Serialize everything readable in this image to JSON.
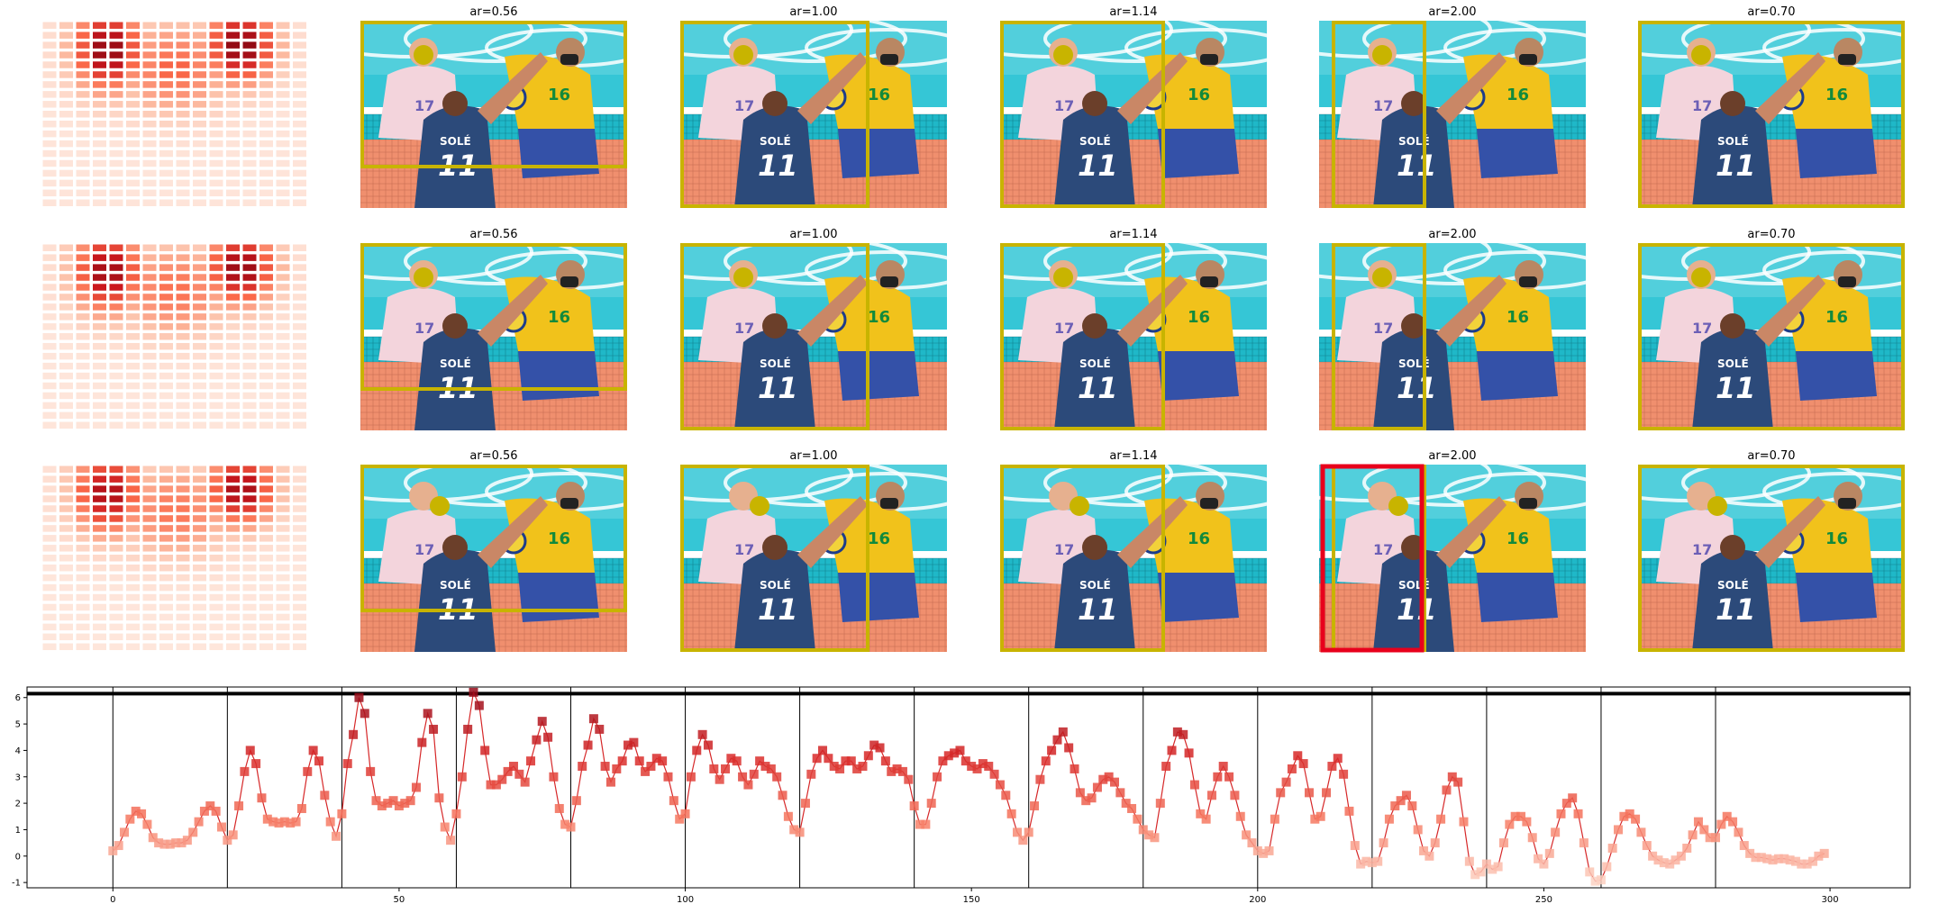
{
  "grid": {
    "rows": 3,
    "titles": [
      "ar=0.56",
      "ar=1.00",
      "ar=1.14",
      "ar=2.00",
      "ar=0.70"
    ],
    "aspect_ratios": [
      0.56,
      1.0,
      1.14,
      2.0,
      0.7
    ],
    "box_color": "#c8b400",
    "red_box_color": "#e8001c",
    "heatmap_colormap": "Reds"
  },
  "jersey_text": {
    "name": "SOLÉ",
    "number": "11",
    "number_right": "16"
  },
  "chart_data": {
    "type": "line",
    "xlabel": "",
    "ylabel": "",
    "xlim": [
      -15,
      314
    ],
    "ylim": [
      -1.2,
      6.4
    ],
    "xticks": [
      0,
      50,
      100,
      150,
      200,
      250,
      300
    ],
    "yticks": [
      -1,
      0,
      1,
      2,
      3,
      4,
      5,
      6
    ],
    "hline": 6.15,
    "vlines": [
      0,
      20,
      40,
      60,
      80,
      100,
      120,
      140,
      160,
      180,
      200,
      220,
      240,
      260,
      280
    ],
    "series": [
      {
        "x": [
          0,
          1,
          2,
          3,
          4,
          5,
          6,
          7,
          8,
          9,
          10,
          11,
          12,
          13,
          14,
          15,
          16,
          17,
          18,
          19,
          20,
          21,
          22,
          23,
          24,
          25,
          26,
          27,
          28,
          29,
          30,
          31,
          32,
          33,
          34,
          35,
          36,
          37,
          38,
          39,
          40,
          41,
          42,
          43,
          44,
          45,
          46,
          47,
          48,
          49,
          50,
          51,
          52,
          53,
          54,
          55,
          56,
          57,
          58,
          59,
          60,
          61,
          62,
          63,
          64,
          65,
          66,
          67,
          68,
          69,
          70,
          71,
          72,
          73,
          74,
          75,
          76,
          77,
          78,
          79,
          80,
          81,
          82,
          83,
          84,
          85,
          86,
          87,
          88,
          89,
          90,
          91,
          92,
          93,
          94,
          95,
          96,
          97,
          98,
          99,
          100,
          101,
          102,
          103,
          104,
          105,
          106,
          107,
          108,
          109,
          110,
          111,
          112,
          113,
          114,
          115,
          116,
          117,
          118,
          119,
          120,
          121,
          122,
          123,
          124,
          125,
          126,
          127,
          128,
          129,
          130,
          131,
          132,
          133,
          134,
          135,
          136,
          137,
          138,
          139,
          140,
          141,
          142,
          143,
          144,
          145,
          146,
          147,
          148,
          149,
          150,
          151,
          152,
          153,
          154,
          155,
          156,
          157,
          158,
          159,
          160,
          161,
          162,
          163,
          164,
          165,
          166,
          167,
          168,
          169,
          170,
          171,
          172,
          173,
          174,
          175,
          176,
          177,
          178,
          179,
          180,
          181,
          182,
          183,
          184,
          185,
          186,
          187,
          188,
          189,
          190,
          191,
          192,
          193,
          194,
          195,
          196,
          197,
          198,
          199,
          200,
          201,
          202,
          203,
          204,
          205,
          206,
          207,
          208,
          209,
          210,
          211,
          212,
          213,
          214,
          215,
          216,
          217,
          218,
          219,
          220,
          221,
          222,
          223,
          224,
          225,
          226,
          227,
          228,
          229,
          230,
          231,
          232,
          233,
          234,
          235,
          236,
          237,
          238,
          239,
          240,
          241,
          242,
          243,
          244,
          245,
          246,
          247,
          248,
          249,
          250,
          251,
          252,
          253,
          254,
          255,
          256,
          257,
          258,
          259,
          260,
          261,
          262,
          263,
          264,
          265,
          266,
          267,
          268,
          269,
          270,
          271,
          272,
          273,
          274,
          275,
          276,
          277,
          278,
          279,
          280,
          281,
          282,
          283,
          284,
          285,
          286,
          287,
          288,
          289,
          290,
          291,
          292,
          293,
          294,
          295,
          296,
          297,
          298,
          299
        ],
        "y": [
          0.2,
          0.4,
          0.9,
          1.4,
          1.7,
          1.6,
          1.2,
          0.7,
          0.5,
          0.45,
          0.45,
          0.5,
          0.5,
          0.6,
          0.9,
          1.3,
          1.7,
          1.9,
          1.7,
          1.1,
          0.6,
          0.8,
          1.9,
          3.2,
          4.0,
          3.5,
          2.2,
          1.4,
          1.3,
          1.25,
          1.3,
          1.25,
          1.3,
          1.8,
          3.2,
          4.0,
          3.6,
          2.3,
          1.3,
          0.75,
          1.6,
          3.5,
          4.6,
          6.0,
          5.4,
          3.2,
          2.1,
          1.9,
          2.0,
          2.1,
          1.9,
          2.0,
          2.1,
          2.6,
          4.3,
          5.4,
          4.8,
          2.2,
          1.1,
          0.6,
          1.6,
          3.0,
          4.8,
          6.2,
          5.7,
          4.0,
          2.7,
          2.7,
          2.9,
          3.2,
          3.4,
          3.1,
          2.8,
          3.6,
          4.4,
          5.1,
          4.5,
          3.0,
          1.8,
          1.2,
          1.1,
          2.1,
          3.4,
          4.2,
          5.2,
          4.8,
          3.4,
          2.8,
          3.3,
          3.6,
          4.2,
          4.3,
          3.6,
          3.2,
          3.4,
          3.7,
          3.6,
          3.0,
          2.1,
          1.4,
          1.6,
          3.0,
          4.0,
          4.6,
          4.2,
          3.3,
          2.9,
          3.3,
          3.7,
          3.6,
          3.0,
          2.7,
          3.1,
          3.6,
          3.4,
          3.3,
          3.0,
          2.3,
          1.5,
          1.0,
          0.9,
          2.0,
          3.1,
          3.7,
          4.0,
          3.7,
          3.4,
          3.3,
          3.6,
          3.6,
          3.3,
          3.4,
          3.8,
          4.2,
          4.1,
          3.6,
          3.2,
          3.3,
          3.2,
          2.9,
          1.9,
          1.2,
          1.2,
          2.0,
          3.0,
          3.6,
          3.8,
          3.9,
          4.0,
          3.6,
          3.4,
          3.3,
          3.5,
          3.4,
          3.1,
          2.7,
          2.3,
          1.6,
          0.9,
          0.6,
          0.9,
          1.9,
          2.9,
          3.6,
          4.0,
          4.4,
          4.7,
          4.1,
          3.3,
          2.4,
          2.1,
          2.2,
          2.6,
          2.9,
          3.0,
          2.8,
          2.4,
          2.0,
          1.8,
          1.4,
          1.0,
          0.8,
          0.7,
          2.0,
          3.4,
          4.0,
          4.7,
          4.6,
          3.9,
          2.7,
          1.6,
          1.4,
          2.3,
          3.0,
          3.4,
          3.0,
          2.3,
          1.5,
          0.8,
          0.5,
          0.2,
          0.1,
          0.2,
          1.4,
          2.4,
          2.8,
          3.3,
          3.8,
          3.5,
          2.4,
          1.4,
          1.5,
          2.4,
          3.4,
          3.7,
          3.1,
          1.7,
          0.4,
          -0.3,
          -0.2,
          -0.25,
          -0.2,
          0.5,
          1.4,
          1.9,
          2.1,
          2.3,
          1.9,
          1.0,
          0.2,
          0.0,
          0.5,
          1.4,
          2.5,
          3.0,
          2.8,
          1.3,
          -0.2,
          -0.7,
          -0.6,
          -0.3,
          -0.5,
          -0.4,
          0.5,
          1.2,
          1.5,
          1.5,
          1.3,
          0.7,
          -0.1,
          -0.3,
          0.1,
          0.9,
          1.6,
          2.0,
          2.2,
          1.6,
          0.5,
          -0.6,
          -0.95,
          -0.9,
          -0.4,
          0.3,
          1.0,
          1.5,
          1.6,
          1.4,
          0.9,
          0.4,
          0.0,
          -0.15,
          -0.25,
          -0.3,
          -0.15,
          0.0,
          0.3,
          0.8,
          1.3,
          1.0,
          0.7,
          0.7,
          1.2,
          1.5,
          1.3,
          0.9,
          0.4,
          0.1,
          -0.05,
          -0.05,
          -0.1,
          -0.15,
          -0.1,
          -0.1,
          -0.15,
          -0.2,
          -0.3,
          -0.3,
          -0.2,
          0.0,
          0.1
        ],
        "color": "#d62728"
      }
    ]
  }
}
